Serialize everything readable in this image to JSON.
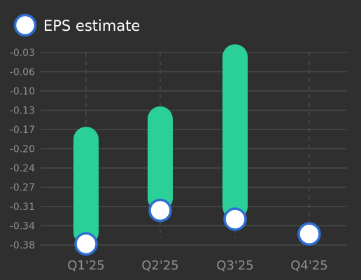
{
  "chart_data": {
    "type": "bar",
    "legend": {
      "label": "EPS estimate",
      "position": "top-left"
    },
    "categories": [
      "Q1'25",
      "Q2'25",
      "Q3'25",
      "Q4'25"
    ],
    "actual_range_bars": [
      {
        "category": "Q1'25",
        "low": -0.38,
        "high": -0.165
      },
      {
        "category": "Q2'25",
        "low": -0.318,
        "high": -0.128
      },
      {
        "category": "Q3'25",
        "low": -0.333,
        "high": -0.015
      },
      {
        "category": "Q4'25",
        "low": null,
        "high": null
      }
    ],
    "series": [
      {
        "name": "EPS estimate",
        "values": [
          -0.378,
          -0.317,
          -0.333,
          -0.36
        ]
      }
    ],
    "yticks": [
      "-0.03",
      "-0.06",
      "-0.10",
      "-0.13",
      "-0.17",
      "-0.20",
      "-0.24",
      "-0.27",
      "-0.31",
      "-0.34",
      "-0.38"
    ],
    "ylim": [
      -0.38,
      -0.03
    ],
    "grid": {
      "horizontal": true,
      "vertical_dashed": true
    },
    "colors": {
      "background": "#2f2f2f",
      "bar": "#2ad097",
      "marker_fill": "#ffffff",
      "marker_stroke": "#2f6fd4",
      "grid": "#4a4a4a",
      "tick_text": "#8f8f8f",
      "legend_text": "#ffffff"
    }
  }
}
